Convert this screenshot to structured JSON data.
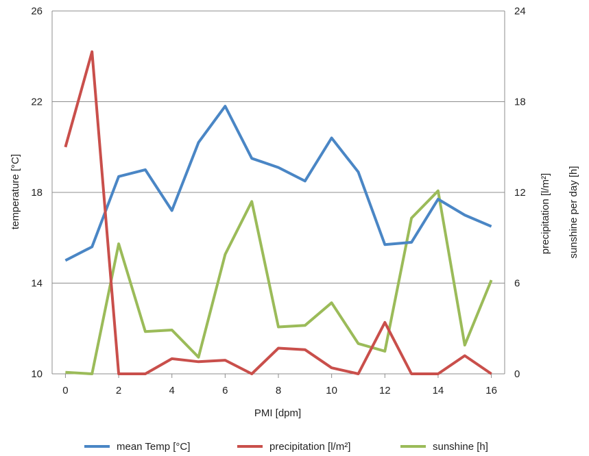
{
  "chart_data": {
    "type": "line",
    "xlabel": "PMI [dpm]",
    "ylabel_left": "temperature [°C]",
    "ylabel_right_1": "precipitation [l/m²]",
    "ylabel_right_2": "sunshine per day [h]",
    "x": [
      0,
      1,
      2,
      3,
      4,
      5,
      6,
      7,
      8,
      9,
      10,
      11,
      12,
      13,
      14,
      15,
      16
    ],
    "x_ticks": [
      0,
      2,
      4,
      6,
      8,
      10,
      12,
      14,
      16
    ],
    "xlim": [
      -0.5,
      16.5
    ],
    "ylim_left": [
      10,
      26
    ],
    "yticks_left": [
      10,
      14,
      18,
      22,
      26
    ],
    "ylim_right": [
      0,
      24
    ],
    "yticks_right": [
      0,
      6,
      12,
      18,
      24
    ],
    "grid": "horizontal",
    "legend_position": "bottom",
    "series": [
      {
        "name": "mean Temp [°C]",
        "axis": "left",
        "color": "#4a86c5",
        "values": [
          15.0,
          15.6,
          18.7,
          19.0,
          17.2,
          20.2,
          21.8,
          19.5,
          19.1,
          18.5,
          20.4,
          18.9,
          15.7,
          15.8,
          17.7,
          17.0,
          16.5
        ]
      },
      {
        "name": "precipitation [l/m²]",
        "axis": "right",
        "color": "#c94f4b",
        "values": [
          15.0,
          21.3,
          0.0,
          0.0,
          1.0,
          0.8,
          0.9,
          0.0,
          1.7,
          1.6,
          0.4,
          0.0,
          3.4,
          0.0,
          0.0,
          1.2,
          0.0
        ]
      },
      {
        "name": "sunshine [h]",
        "axis": "right",
        "color": "#9bbb59",
        "values": [
          0.1,
          0.0,
          8.6,
          2.8,
          2.9,
          1.1,
          7.9,
          11.4,
          3.1,
          3.2,
          4.7,
          2.0,
          1.5,
          10.3,
          12.1,
          1.9,
          6.2
        ]
      }
    ]
  }
}
